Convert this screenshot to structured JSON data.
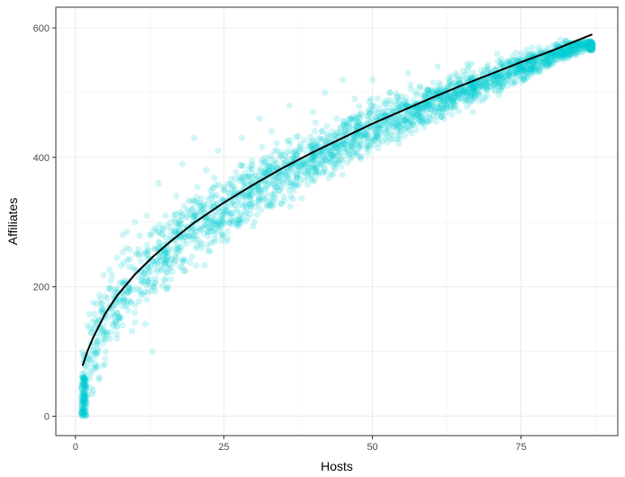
{
  "chart_data": {
    "type": "scatter",
    "title": "",
    "xlabel": "Hosts",
    "ylabel": "Affiliates",
    "xlim": [
      -3.3,
      91.3
    ],
    "ylim": [
      -30,
      632
    ],
    "x_ticks": [
      0,
      25,
      50,
      75
    ],
    "y_ticks": [
      0,
      200,
      400,
      600
    ],
    "x_tick_labels": [
      "0",
      "25",
      "50",
      "75"
    ],
    "y_tick_labels": [
      "0",
      "200",
      "400",
      "600"
    ],
    "grid": true,
    "legend": "none",
    "point_color": "#00CED1",
    "point_alpha": 0.18,
    "line_color": "#000000",
    "panel_border_color": "#333333",
    "grid_color": "#ebebeb",
    "points_described": "Dense cloud of several thousand semi-transparent points (x from about 1 to 87) scattered around the fitted curve, wide spread at low x narrowing near x = 87, y from about 0 to 580",
    "fit_line": {
      "x": [
        1.2,
        2,
        3,
        5,
        7,
        10,
        13,
        16,
        20,
        25,
        30,
        35,
        40,
        45,
        50,
        55,
        60,
        65,
        70,
        75,
        80,
        87
      ],
      "y": [
        78,
        100,
        122,
        158,
        186,
        219,
        246,
        270,
        299,
        330,
        358,
        384,
        408,
        430,
        452,
        472,
        492,
        511,
        529,
        547,
        564,
        590
      ]
    },
    "point_samples": {
      "x": [
        1,
        1,
        1.2,
        1.5,
        2,
        2,
        2.5,
        3,
        3,
        3.5,
        4,
        4,
        5,
        5,
        6,
        6,
        7,
        7,
        8,
        8,
        9,
        10,
        10,
        11,
        12,
        12,
        13,
        14,
        14,
        15,
        16,
        17,
        18,
        18,
        20,
        20,
        21,
        22,
        23,
        24,
        25,
        26,
        28,
        28,
        30,
        31,
        32,
        33,
        35,
        36,
        38,
        38,
        40,
        41,
        42,
        43,
        44,
        45,
        46,
        47,
        48,
        50,
        50,
        52,
        53,
        55,
        56,
        58,
        60,
        61,
        62,
        64,
        65,
        66,
        68,
        70,
        71,
        72,
        74,
        75,
        76,
        78,
        80,
        81,
        82,
        84,
        85,
        86,
        87
      ],
      "y": [
        5,
        30,
        60,
        95,
        20,
        140,
        70,
        40,
        175,
        110,
        150,
        60,
        185,
        80,
        130,
        210,
        120,
        245,
        170,
        280,
        200,
        160,
        300,
        240,
        180,
        310,
        100,
        260,
        360,
        210,
        300,
        340,
        230,
        390,
        280,
        430,
        330,
        380,
        300,
        410,
        350,
        300,
        430,
        370,
        330,
        460,
        400,
        440,
        360,
        480,
        420,
        390,
        470,
        430,
        500,
        410,
        460,
        520,
        440,
        490,
        430,
        480,
        520,
        450,
        500,
        480,
        530,
        510,
        490,
        540,
        460,
        530,
        510,
        545,
        520,
        530,
        560,
        540,
        515,
        560,
        550,
        570,
        560,
        575,
        565,
        575,
        578,
        572,
        575
      ]
    }
  }
}
